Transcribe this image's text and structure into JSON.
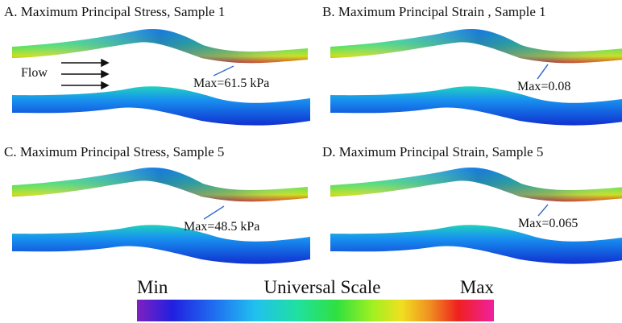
{
  "panels": [
    {
      "title": "A. Maximum Principal Stress, Sample 1",
      "annotation": "Max=61.5 kPa"
    },
    {
      "title": "B. Maximum Principal Strain , Sample 1",
      "annotation": "Max=0.08"
    },
    {
      "title": "C. Maximum Principal Stress, Sample 5",
      "annotation": "Max=48.5 kPa"
    },
    {
      "title": "D. Maximum Principal Strain, Sample 5",
      "annotation": "Max=0.065"
    }
  ],
  "flow_label": "Flow",
  "scale": {
    "min_label": "Min",
    "title": "Universal Scale",
    "max_label": "Max"
  }
}
